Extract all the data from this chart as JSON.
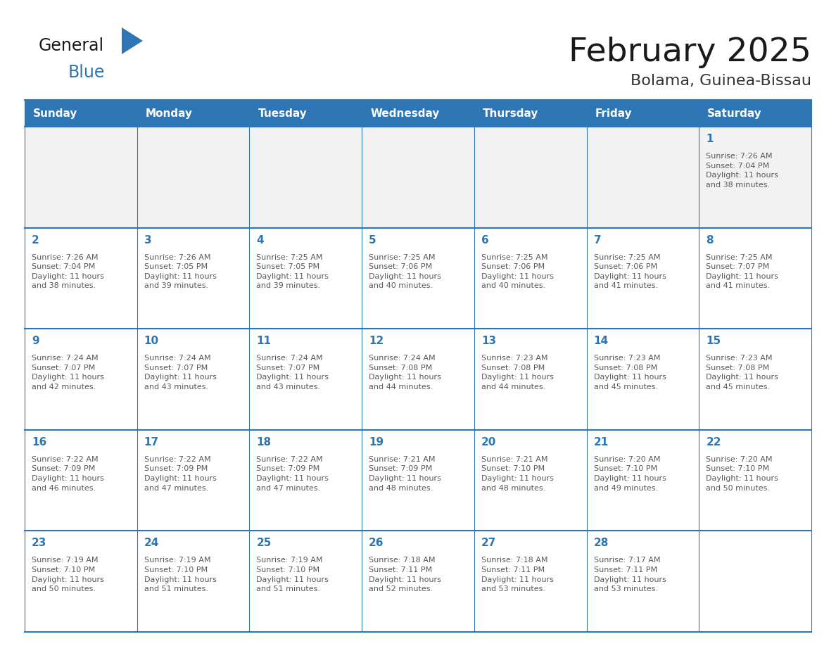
{
  "title": "February 2025",
  "subtitle": "Bolama, Guinea-Bissau",
  "header_bg": "#2E75B6",
  "header_text_color": "#FFFFFF",
  "cell_border_color": "#2E75B6",
  "day_number_color": "#2E75B6",
  "info_text_color": "#595959",
  "background_color": "#FFFFFF",
  "first_row_bg": "#F2F2F2",
  "logo_general_color": "#1a1a1a",
  "logo_blue_color": "#2E75B6",
  "logo_triangle_color": "#2E75B6",
  "days_of_week": [
    "Sunday",
    "Monday",
    "Tuesday",
    "Wednesday",
    "Thursday",
    "Friday",
    "Saturday"
  ],
  "weeks": [
    [
      {
        "day": null,
        "info": null
      },
      {
        "day": null,
        "info": null
      },
      {
        "day": null,
        "info": null
      },
      {
        "day": null,
        "info": null
      },
      {
        "day": null,
        "info": null
      },
      {
        "day": null,
        "info": null
      },
      {
        "day": 1,
        "info": "Sunrise: 7:26 AM\nSunset: 7:04 PM\nDaylight: 11 hours\nand 38 minutes."
      }
    ],
    [
      {
        "day": 2,
        "info": "Sunrise: 7:26 AM\nSunset: 7:04 PM\nDaylight: 11 hours\nand 38 minutes."
      },
      {
        "day": 3,
        "info": "Sunrise: 7:26 AM\nSunset: 7:05 PM\nDaylight: 11 hours\nand 39 minutes."
      },
      {
        "day": 4,
        "info": "Sunrise: 7:25 AM\nSunset: 7:05 PM\nDaylight: 11 hours\nand 39 minutes."
      },
      {
        "day": 5,
        "info": "Sunrise: 7:25 AM\nSunset: 7:06 PM\nDaylight: 11 hours\nand 40 minutes."
      },
      {
        "day": 6,
        "info": "Sunrise: 7:25 AM\nSunset: 7:06 PM\nDaylight: 11 hours\nand 40 minutes."
      },
      {
        "day": 7,
        "info": "Sunrise: 7:25 AM\nSunset: 7:06 PM\nDaylight: 11 hours\nand 41 minutes."
      },
      {
        "day": 8,
        "info": "Sunrise: 7:25 AM\nSunset: 7:07 PM\nDaylight: 11 hours\nand 41 minutes."
      }
    ],
    [
      {
        "day": 9,
        "info": "Sunrise: 7:24 AM\nSunset: 7:07 PM\nDaylight: 11 hours\nand 42 minutes."
      },
      {
        "day": 10,
        "info": "Sunrise: 7:24 AM\nSunset: 7:07 PM\nDaylight: 11 hours\nand 43 minutes."
      },
      {
        "day": 11,
        "info": "Sunrise: 7:24 AM\nSunset: 7:07 PM\nDaylight: 11 hours\nand 43 minutes."
      },
      {
        "day": 12,
        "info": "Sunrise: 7:24 AM\nSunset: 7:08 PM\nDaylight: 11 hours\nand 44 minutes."
      },
      {
        "day": 13,
        "info": "Sunrise: 7:23 AM\nSunset: 7:08 PM\nDaylight: 11 hours\nand 44 minutes."
      },
      {
        "day": 14,
        "info": "Sunrise: 7:23 AM\nSunset: 7:08 PM\nDaylight: 11 hours\nand 45 minutes."
      },
      {
        "day": 15,
        "info": "Sunrise: 7:23 AM\nSunset: 7:08 PM\nDaylight: 11 hours\nand 45 minutes."
      }
    ],
    [
      {
        "day": 16,
        "info": "Sunrise: 7:22 AM\nSunset: 7:09 PM\nDaylight: 11 hours\nand 46 minutes."
      },
      {
        "day": 17,
        "info": "Sunrise: 7:22 AM\nSunset: 7:09 PM\nDaylight: 11 hours\nand 47 minutes."
      },
      {
        "day": 18,
        "info": "Sunrise: 7:22 AM\nSunset: 7:09 PM\nDaylight: 11 hours\nand 47 minutes."
      },
      {
        "day": 19,
        "info": "Sunrise: 7:21 AM\nSunset: 7:09 PM\nDaylight: 11 hours\nand 48 minutes."
      },
      {
        "day": 20,
        "info": "Sunrise: 7:21 AM\nSunset: 7:10 PM\nDaylight: 11 hours\nand 48 minutes."
      },
      {
        "day": 21,
        "info": "Sunrise: 7:20 AM\nSunset: 7:10 PM\nDaylight: 11 hours\nand 49 minutes."
      },
      {
        "day": 22,
        "info": "Sunrise: 7:20 AM\nSunset: 7:10 PM\nDaylight: 11 hours\nand 50 minutes."
      }
    ],
    [
      {
        "day": 23,
        "info": "Sunrise: 7:19 AM\nSunset: 7:10 PM\nDaylight: 11 hours\nand 50 minutes."
      },
      {
        "day": 24,
        "info": "Sunrise: 7:19 AM\nSunset: 7:10 PM\nDaylight: 11 hours\nand 51 minutes."
      },
      {
        "day": 25,
        "info": "Sunrise: 7:19 AM\nSunset: 7:10 PM\nDaylight: 11 hours\nand 51 minutes."
      },
      {
        "day": 26,
        "info": "Sunrise: 7:18 AM\nSunset: 7:11 PM\nDaylight: 11 hours\nand 52 minutes."
      },
      {
        "day": 27,
        "info": "Sunrise: 7:18 AM\nSunset: 7:11 PM\nDaylight: 11 hours\nand 53 minutes."
      },
      {
        "day": 28,
        "info": "Sunrise: 7:17 AM\nSunset: 7:11 PM\nDaylight: 11 hours\nand 53 minutes."
      },
      {
        "day": null,
        "info": null
      }
    ]
  ]
}
